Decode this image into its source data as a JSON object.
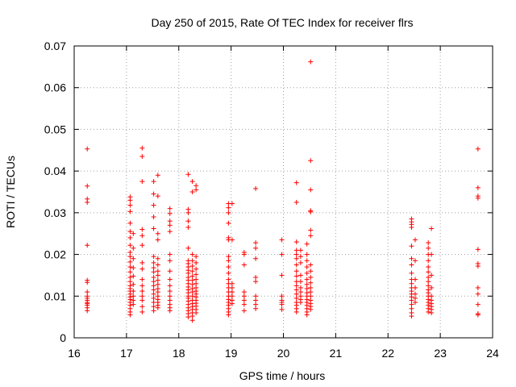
{
  "chart_data": {
    "type": "scatter",
    "title": "Day 250 of 2015, Rate Of TEC Index for receiver flrs",
    "xlabel": "GPS time / hours",
    "ylabel": "ROTI / TECUs",
    "xlim": [
      16,
      24
    ],
    "ylim": [
      0,
      0.07
    ],
    "xticks": [
      "16",
      "17",
      "18",
      "19",
      "20",
      "21",
      "22",
      "23",
      "24"
    ],
    "yticks": [
      "0",
      "0.01",
      "0.02",
      "0.03",
      "0.04",
      "0.05",
      "0.06",
      "0.07"
    ],
    "grid": true,
    "marker": "+",
    "color": "#ff0000",
    "clusters": [
      {
        "x": 16.25,
        "values": [
          0.0453,
          0.0364,
          0.0333,
          0.0325,
          0.0222,
          0.0138,
          0.0133,
          0.011,
          0.01,
          0.0095,
          0.009,
          0.0085,
          0.0082,
          0.0078,
          0.0072,
          0.0065
        ]
      },
      {
        "x": 17.07,
        "values": [
          0.0338,
          0.033,
          0.0318,
          0.0303,
          0.0275,
          0.0255,
          0.024,
          0.0222,
          0.0205,
          0.0195,
          0.0182,
          0.017,
          0.0158,
          0.0145,
          0.0135,
          0.0125,
          0.0118,
          0.0112,
          0.0105,
          0.0098,
          0.0092,
          0.0085,
          0.0078,
          0.007,
          0.0062,
          0.0055
        ]
      },
      {
        "x": 17.13,
        "values": [
          0.025,
          0.0215,
          0.019,
          0.0168,
          0.0148,
          0.0128,
          0.0112,
          0.01,
          0.009,
          0.008
        ]
      },
      {
        "x": 17.3,
        "values": [
          0.0455,
          0.0435,
          0.0375,
          0.026,
          0.0245,
          0.0222,
          0.018,
          0.0165,
          0.014,
          0.0125,
          0.0112,
          0.01,
          0.009,
          0.0075,
          0.0062
        ]
      },
      {
        "x": 17.52,
        "values": [
          0.0375,
          0.0345,
          0.0318,
          0.029,
          0.0262,
          0.0195,
          0.018,
          0.0168,
          0.0158,
          0.0145,
          0.0135,
          0.0125,
          0.0115,
          0.0105,
          0.0095,
          0.0085,
          0.0075,
          0.0065
        ]
      },
      {
        "x": 17.6,
        "values": [
          0.039,
          0.034,
          0.025,
          0.0235,
          0.019,
          0.0175,
          0.016,
          0.015,
          0.0138,
          0.0128,
          0.0118,
          0.011,
          0.01,
          0.0092,
          0.0085,
          0.0078,
          0.0072
        ]
      },
      {
        "x": 17.83,
        "values": [
          0.031,
          0.0298,
          0.028,
          0.027,
          0.0255,
          0.02,
          0.0185,
          0.016,
          0.014,
          0.0125,
          0.0112,
          0.01,
          0.009,
          0.008,
          0.0072,
          0.0065
        ]
      },
      {
        "x": 18.18,
        "values": [
          0.0392,
          0.0308,
          0.03,
          0.028,
          0.0265,
          0.0215,
          0.0185,
          0.0178,
          0.017,
          0.0162,
          0.0155,
          0.0145,
          0.0138,
          0.013,
          0.0122,
          0.0115,
          0.0108,
          0.01,
          0.0095,
          0.0088,
          0.008,
          0.0072,
          0.0065,
          0.0058,
          0.005
        ]
      },
      {
        "x": 18.26,
        "values": [
          0.0375,
          0.035,
          0.02,
          0.0185,
          0.0172,
          0.016,
          0.0148,
          0.0138,
          0.0128,
          0.0118,
          0.011,
          0.01,
          0.009,
          0.0082,
          0.0075,
          0.0068,
          0.006,
          0.0052,
          0.0042
        ]
      },
      {
        "x": 18.33,
        "values": [
          0.0365,
          0.0355,
          0.0195,
          0.018,
          0.0165,
          0.0152,
          0.014,
          0.013,
          0.012,
          0.0112,
          0.0105,
          0.0098,
          0.009,
          0.0083,
          0.0076,
          0.0068,
          0.006
        ]
      },
      {
        "x": 18.95,
        "values": [
          0.0322,
          0.0312,
          0.03,
          0.0275,
          0.024,
          0.0235,
          0.0195,
          0.0185,
          0.017,
          0.0155,
          0.014,
          0.013,
          0.012,
          0.011,
          0.01,
          0.0092,
          0.0085,
          0.0078,
          0.007,
          0.0062,
          0.0055
        ]
      },
      {
        "x": 19.02,
        "values": [
          0.0322,
          0.0235,
          0.013,
          0.012,
          0.011,
          0.01,
          0.009,
          0.0082
        ]
      },
      {
        "x": 19.25,
        "values": [
          0.0205,
          0.02,
          0.0175,
          0.011,
          0.01,
          0.009,
          0.008,
          0.0065
        ]
      },
      {
        "x": 19.47,
        "values": [
          0.0358,
          0.0228,
          0.0215,
          0.019,
          0.0145,
          0.0135,
          0.01,
          0.009,
          0.008,
          0.007
        ]
      },
      {
        "x": 19.97,
        "values": [
          0.0235,
          0.02,
          0.015,
          0.01,
          0.009,
          0.0085,
          0.008,
          0.0068
        ]
      },
      {
        "x": 20.25,
        "values": [
          0.0372,
          0.0325,
          0.023,
          0.021,
          0.02,
          0.019,
          0.0175,
          0.016,
          0.0148,
          0.0135,
          0.0125,
          0.0115,
          0.0105,
          0.0095,
          0.0085,
          0.0078,
          0.007,
          0.0062
        ]
      },
      {
        "x": 20.33,
        "values": [
          0.021,
          0.0195,
          0.018,
          0.015,
          0.0135,
          0.012,
          0.011,
          0.01,
          0.0092,
          0.0085
        ]
      },
      {
        "x": 20.45,
        "values": [
          0.0225,
          0.02,
          0.0185,
          0.017,
          0.0155,
          0.014,
          0.0128,
          0.0118,
          0.0108,
          0.01,
          0.0092,
          0.0085,
          0.0078,
          0.007,
          0.0062,
          0.0055
        ]
      },
      {
        "x": 20.52,
        "values": [
          0.0662,
          0.0425,
          0.0355,
          0.0305,
          0.0302,
          0.0258,
          0.0245,
          0.0175,
          0.016,
          0.0145,
          0.0132,
          0.012,
          0.011,
          0.01,
          0.009,
          0.0082,
          0.0075,
          0.0068
        ]
      },
      {
        "x": 22.45,
        "values": [
          0.0285,
          0.0278,
          0.0272,
          0.0265,
          0.022,
          0.019,
          0.0175,
          0.0155,
          0.014,
          0.013,
          0.012,
          0.0112,
          0.0105,
          0.0098,
          0.009,
          0.008,
          0.007,
          0.006,
          0.0052
        ]
      },
      {
        "x": 22.52,
        "values": [
          0.0235,
          0.0185,
          0.014,
          0.012,
          0.0105,
          0.0095,
          0.0085
        ]
      },
      {
        "x": 22.77,
        "values": [
          0.0228,
          0.0215,
          0.02,
          0.0185,
          0.017,
          0.0158,
          0.0145,
          0.0135,
          0.0125,
          0.0115,
          0.0108,
          0.01,
          0.0092,
          0.0085,
          0.0078,
          0.007,
          0.0062
        ]
      },
      {
        "x": 22.83,
        "values": [
          0.0262,
          0.02,
          0.015,
          0.012,
          0.01,
          0.009,
          0.0082,
          0.0075,
          0.0068,
          0.006
        ]
      },
      {
        "x": 23.72,
        "values": [
          0.0453,
          0.036,
          0.034,
          0.0335,
          0.0212,
          0.0178,
          0.0172,
          0.012,
          0.0105,
          0.008,
          0.0058,
          0.0055
        ]
      }
    ]
  }
}
